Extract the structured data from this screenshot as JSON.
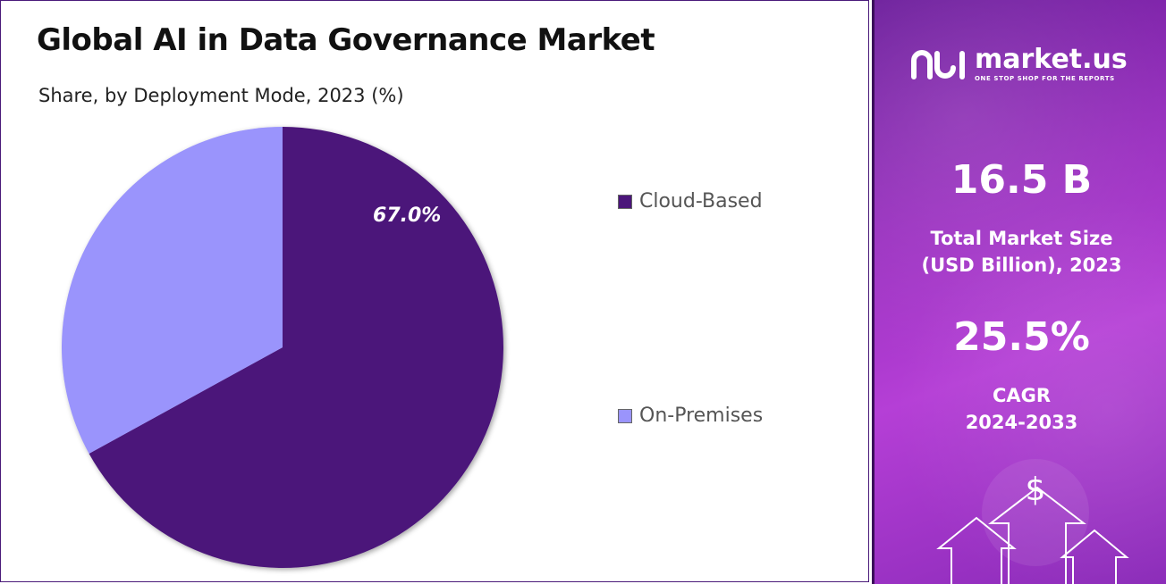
{
  "title": "Global AI in Data Governance Market",
  "subtitle": "Share, by Deployment Mode, 2023 (%)",
  "chart_data": {
    "type": "pie",
    "title": "Global AI in Data Governance Market",
    "subtitle": "Share, by Deployment Mode, 2023 (%)",
    "categories": [
      "Cloud-Based",
      "On-Premises"
    ],
    "values": [
      67.0,
      33.0
    ],
    "colors": [
      "#4b167a",
      "#9a94fc"
    ],
    "data_labels": [
      "67.0%",
      ""
    ],
    "legend_position": "right"
  },
  "legend": [
    {
      "label": "Cloud-Based",
      "color": "#4b167a"
    },
    {
      "label": "On-Premises",
      "color": "#9a94fc"
    }
  ],
  "sidebar": {
    "logo_text": "market.us",
    "logo_tagline": "ONE STOP SHOP FOR THE REPORTS",
    "market_size_value": "16.5 B",
    "market_size_label_line1": "Total Market Size",
    "market_size_label_line2": "(USD Billion), 2023",
    "cagr_value": "25.5%",
    "cagr_label_line1": "CAGR",
    "cagr_label_line2": "2024-2033",
    "icons": [
      "market-us-logo-icon",
      "dollar-icon",
      "up-arrow-icon"
    ]
  }
}
